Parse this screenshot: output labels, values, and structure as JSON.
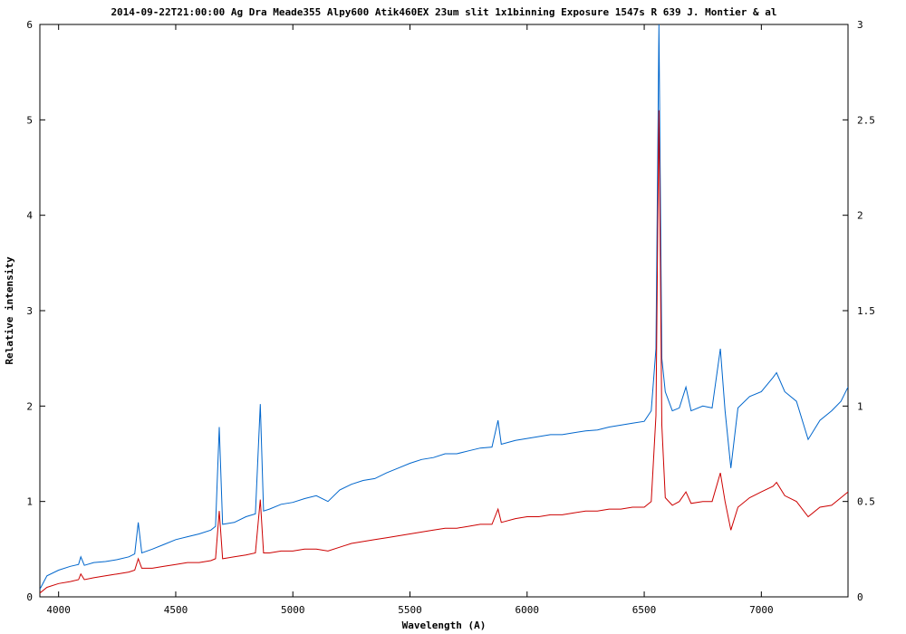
{
  "chart_data": {
    "type": "line",
    "title": "2014-09-22T21:00:00 Ag Dra Meade355 Alpy600 Atik460EX 23um slit 1x1binning Exposure 1547s R 639 J. Montier & al",
    "xlabel": "Wavelength (A)",
    "ylabel": "Relative intensity",
    "xlim": [
      3920,
      7370
    ],
    "ylim_left": [
      0,
      6
    ],
    "ylim_right": [
      0,
      3
    ],
    "x_ticks": [
      4000,
      4500,
      5000,
      5500,
      6000,
      6500,
      7000
    ],
    "x_tick_labels": [
      "4000",
      "4500",
      "5000",
      "5500",
      "6000",
      "6500",
      "7000"
    ],
    "y_left_ticks": [
      0,
      1,
      2,
      3,
      4,
      5,
      6
    ],
    "y_left_tick_labels": [
      "0",
      "1",
      "2",
      "3",
      "4",
      "5",
      "6"
    ],
    "y_right_ticks": [
      0,
      0.5,
      1,
      1.5,
      2,
      2.5,
      3
    ],
    "y_right_tick_labels": [
      "0",
      "0.5",
      "1",
      "1.5",
      "2",
      "2.5",
      "3"
    ],
    "grid": false,
    "series": [
      {
        "color": "#0066cc",
        "axis": "left",
        "x": [
          3920,
          3950,
          4000,
          4050,
          4085,
          4095,
          4110,
          4150,
          4200,
          4250,
          4300,
          4325,
          4340,
          4355,
          4400,
          4450,
          4500,
          4550,
          4600,
          4650,
          4670,
          4686,
          4700,
          4750,
          4800,
          4840,
          4861,
          4875,
          4900,
          4950,
          5000,
          5050,
          5100,
          5150,
          5200,
          5250,
          5300,
          5350,
          5400,
          5450,
          5500,
          5550,
          5600,
          5650,
          5700,
          5750,
          5800,
          5850,
          5876,
          5890,
          5950,
          6000,
          6050,
          6100,
          6150,
          6200,
          6250,
          6300,
          6350,
          6400,
          6450,
          6500,
          6530,
          6550,
          6563,
          6575,
          6590,
          6620,
          6650,
          6678,
          6700,
          6750,
          6790,
          6825,
          6845,
          6870,
          6900,
          6950,
          7000,
          7050,
          7065,
          7100,
          7150,
          7200,
          7250,
          7300,
          7340,
          7370
        ],
        "y": [
          0.08,
          0.22,
          0.28,
          0.32,
          0.34,
          0.42,
          0.33,
          0.36,
          0.37,
          0.39,
          0.42,
          0.45,
          0.78,
          0.46,
          0.5,
          0.55,
          0.6,
          0.63,
          0.66,
          0.7,
          0.74,
          1.78,
          0.76,
          0.78,
          0.84,
          0.87,
          2.02,
          0.9,
          0.92,
          0.97,
          0.99,
          1.03,
          1.06,
          1.0,
          1.12,
          1.18,
          1.22,
          1.24,
          1.3,
          1.35,
          1.4,
          1.44,
          1.46,
          1.5,
          1.5,
          1.53,
          1.56,
          1.57,
          1.85,
          1.6,
          1.64,
          1.66,
          1.68,
          1.7,
          1.7,
          1.72,
          1.74,
          1.75,
          1.78,
          1.8,
          1.82,
          1.84,
          1.95,
          2.6,
          6.0,
          2.5,
          2.15,
          1.95,
          1.98,
          2.2,
          1.95,
          2.0,
          1.98,
          2.6,
          1.95,
          1.35,
          1.98,
          2.1,
          2.15,
          2.3,
          2.35,
          2.15,
          2.05,
          1.65,
          1.85,
          1.95,
          2.05,
          2.2
        ]
      },
      {
        "color": "#cc0000",
        "axis": "right",
        "x": [
          3920,
          3950,
          4000,
          4050,
          4085,
          4095,
          4110,
          4150,
          4200,
          4250,
          4300,
          4325,
          4340,
          4355,
          4400,
          4450,
          4500,
          4550,
          4600,
          4650,
          4670,
          4686,
          4700,
          4750,
          4800,
          4840,
          4861,
          4875,
          4900,
          4950,
          5000,
          5050,
          5100,
          5150,
          5200,
          5250,
          5300,
          5350,
          5400,
          5450,
          5500,
          5550,
          5600,
          5650,
          5700,
          5750,
          5800,
          5850,
          5876,
          5890,
          5950,
          6000,
          6050,
          6100,
          6150,
          6200,
          6250,
          6300,
          6350,
          6400,
          6450,
          6500,
          6530,
          6550,
          6563,
          6575,
          6590,
          6620,
          6650,
          6678,
          6700,
          6750,
          6790,
          6825,
          6845,
          6870,
          6900,
          6950,
          7000,
          7050,
          7065,
          7100,
          7150,
          7200,
          7250,
          7300,
          7340,
          7370
        ],
        "y": [
          0.02,
          0.05,
          0.07,
          0.08,
          0.09,
          0.12,
          0.09,
          0.1,
          0.11,
          0.12,
          0.13,
          0.14,
          0.2,
          0.15,
          0.15,
          0.16,
          0.17,
          0.18,
          0.18,
          0.19,
          0.2,
          0.45,
          0.2,
          0.21,
          0.22,
          0.23,
          0.51,
          0.23,
          0.23,
          0.24,
          0.24,
          0.25,
          0.25,
          0.24,
          0.26,
          0.28,
          0.29,
          0.3,
          0.31,
          0.32,
          0.33,
          0.34,
          0.35,
          0.36,
          0.36,
          0.37,
          0.38,
          0.38,
          0.46,
          0.39,
          0.41,
          0.42,
          0.42,
          0.43,
          0.43,
          0.44,
          0.45,
          0.45,
          0.46,
          0.46,
          0.47,
          0.47,
          0.5,
          0.95,
          2.55,
          0.9,
          0.52,
          0.48,
          0.5,
          0.55,
          0.49,
          0.5,
          0.5,
          0.65,
          0.5,
          0.35,
          0.47,
          0.52,
          0.55,
          0.58,
          0.6,
          0.53,
          0.5,
          0.42,
          0.47,
          0.48,
          0.52,
          0.55
        ]
      }
    ]
  }
}
